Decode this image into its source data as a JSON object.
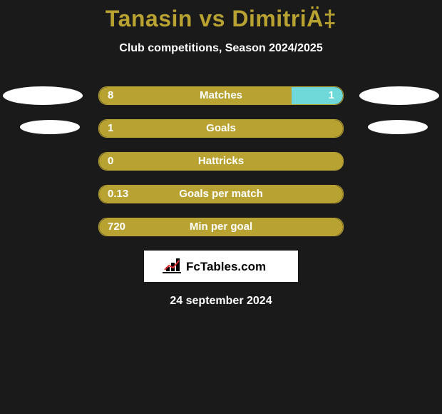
{
  "title": "Tanasin vs DimitriÄ‡",
  "subtitle": "Club competitions, Season 2024/2025",
  "date": "24 september 2024",
  "logo_text": "FcTables.com",
  "colors": {
    "background": "#1a1a1a",
    "accent": "#b8a232",
    "secondary": "#6fd8d8",
    "wing": "#ffffff",
    "text": "#ffffff"
  },
  "wings_visible_row_indices": [
    0,
    1
  ],
  "stats": [
    {
      "label": "Matches",
      "left_value": "8",
      "right_value": "1",
      "left_pct": 79,
      "right_pct": 21,
      "show_right_fill": true,
      "full_fill": false,
      "wing_size": "large"
    },
    {
      "label": "Goals",
      "left_value": "1",
      "right_value": "",
      "left_pct": 100,
      "right_pct": 0,
      "show_right_fill": false,
      "full_fill": true,
      "wing_size": "small"
    },
    {
      "label": "Hattricks",
      "left_value": "0",
      "right_value": "",
      "left_pct": 100,
      "right_pct": 0,
      "show_right_fill": false,
      "full_fill": false,
      "wing_size": "none"
    },
    {
      "label": "Goals per match",
      "left_value": "0.13",
      "right_value": "",
      "left_pct": 100,
      "right_pct": 0,
      "show_right_fill": false,
      "full_fill": true,
      "wing_size": "none"
    },
    {
      "label": "Min per goal",
      "left_value": "720",
      "right_value": "",
      "left_pct": 100,
      "right_pct": 0,
      "show_right_fill": false,
      "full_fill": true,
      "wing_size": "none"
    }
  ]
}
